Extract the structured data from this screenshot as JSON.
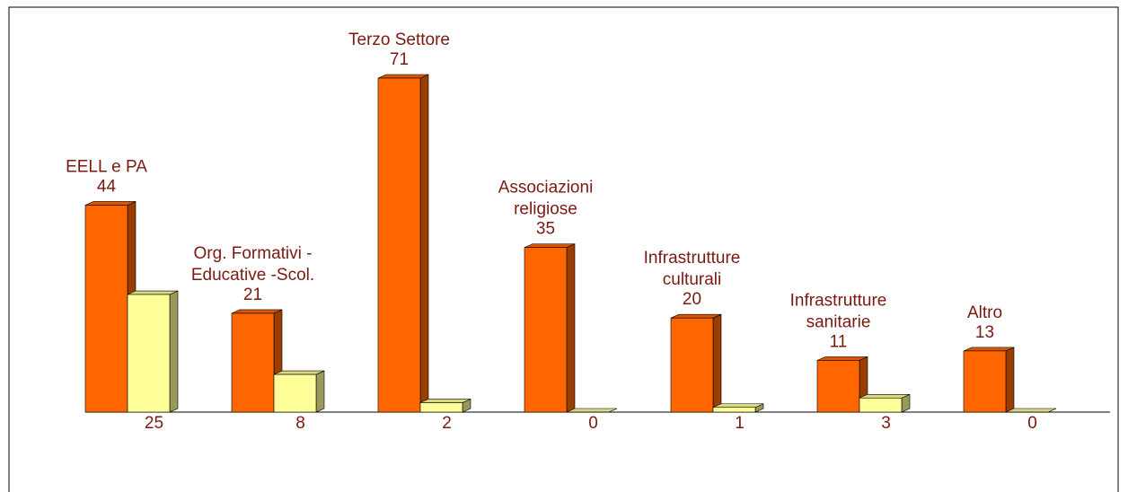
{
  "chart_data": {
    "type": "bar",
    "categories": [
      "EELL e PA",
      "Org. Formativi -\nEducative -Scol.",
      "Terzo Settore",
      "Associazioni\nreligiose",
      "Infrastrutture\nculturali",
      "Infrastrutture\nsanitarie",
      "Altro"
    ],
    "series": [
      {
        "color": "#ff6600",
        "values": [
          44,
          21,
          71,
          35,
          20,
          11,
          13
        ]
      },
      {
        "color": "#ffff99",
        "values": [
          25,
          8,
          2,
          0,
          1,
          3,
          0
        ]
      }
    ]
  }
}
